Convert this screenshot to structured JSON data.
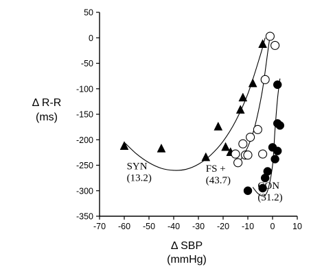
{
  "chart_data": {
    "type": "scatter",
    "title": "",
    "xlabel": "Δ SBP",
    "xlabel_unit": "(mmHg)",
    "ylabel": "Δ R-R",
    "ylabel_unit": "(ms)",
    "xlim": [
      -70,
      10
    ],
    "ylim": [
      -350,
      50
    ],
    "x_ticks": [
      -70,
      -60,
      -50,
      -40,
      -30,
      -20,
      -10,
      0,
      10
    ],
    "y_ticks": [
      50,
      0,
      -50,
      -100,
      -150,
      -200,
      -250,
      -300,
      -350
    ],
    "grid": false,
    "series": [
      {
        "marker": "filled-triangle",
        "color": "#000000",
        "points": [
          [
            -60,
            -213
          ],
          [
            -45,
            -218
          ],
          [
            -27,
            -235
          ],
          [
            -22,
            -175
          ],
          [
            -19,
            -215
          ],
          [
            -17,
            -225
          ],
          [
            -13,
            -142
          ],
          [
            -12,
            -118
          ],
          [
            -8,
            -90
          ],
          [
            -4,
            -13
          ]
        ],
        "fit_curve": [
          [
            -60,
            -205
          ],
          [
            -55,
            -228
          ],
          [
            -50,
            -245
          ],
          [
            -45,
            -256
          ],
          [
            -40,
            -260
          ],
          [
            -35,
            -258
          ],
          [
            -30,
            -248
          ],
          [
            -25,
            -230
          ],
          [
            -20,
            -203
          ],
          [
            -15,
            -164
          ],
          [
            -10,
            -110
          ],
          [
            -5,
            -35
          ],
          [
            -3,
            0
          ]
        ]
      },
      {
        "marker": "open-circle",
        "color": "#000000",
        "points": [
          [
            -15,
            -228
          ],
          [
            -14,
            -245
          ],
          [
            -12,
            -208
          ],
          [
            -11,
            -230
          ],
          [
            -10,
            -230
          ],
          [
            -9,
            -195
          ],
          [
            -6,
            -180
          ],
          [
            -4,
            -228
          ],
          [
            -3,
            -82
          ],
          [
            -1,
            3
          ],
          [
            1,
            -15
          ]
        ],
        "fit_curve": [
          [
            -13,
            -240
          ],
          [
            -12,
            -232
          ],
          [
            -10,
            -214
          ],
          [
            -8,
            -188
          ],
          [
            -6,
            -150
          ],
          [
            -4,
            -100
          ],
          [
            -2,
            -30
          ],
          [
            -1,
            5
          ]
        ]
      },
      {
        "marker": "filled-circle",
        "color": "#000000",
        "points": [
          [
            -10,
            -300
          ],
          [
            -4,
            -295
          ],
          [
            -3,
            -275
          ],
          [
            -2,
            -262
          ],
          [
            0,
            -215
          ],
          [
            1,
            -238
          ],
          [
            2,
            -222
          ],
          [
            2,
            -92
          ],
          [
            2,
            -168
          ],
          [
            3,
            -172
          ]
        ],
        "fit_curve": [
          [
            -8,
            -293
          ],
          [
            -6,
            -305
          ],
          [
            -4,
            -310
          ],
          [
            -2,
            -300
          ],
          [
            0,
            -250
          ],
          [
            1,
            -180
          ],
          [
            2,
            -120
          ],
          [
            3,
            -80
          ]
        ]
      }
    ],
    "annotations": [
      {
        "line1": "SYN",
        "line2": "(13.2)",
        "x": -59,
        "y": -258
      },
      {
        "line1": "FS +",
        "line2": "(43.7)",
        "x": -27,
        "y": -263
      },
      {
        "line1": "CON",
        "line2": "(31.2)",
        "x": -6,
        "y": -296
      }
    ]
  }
}
